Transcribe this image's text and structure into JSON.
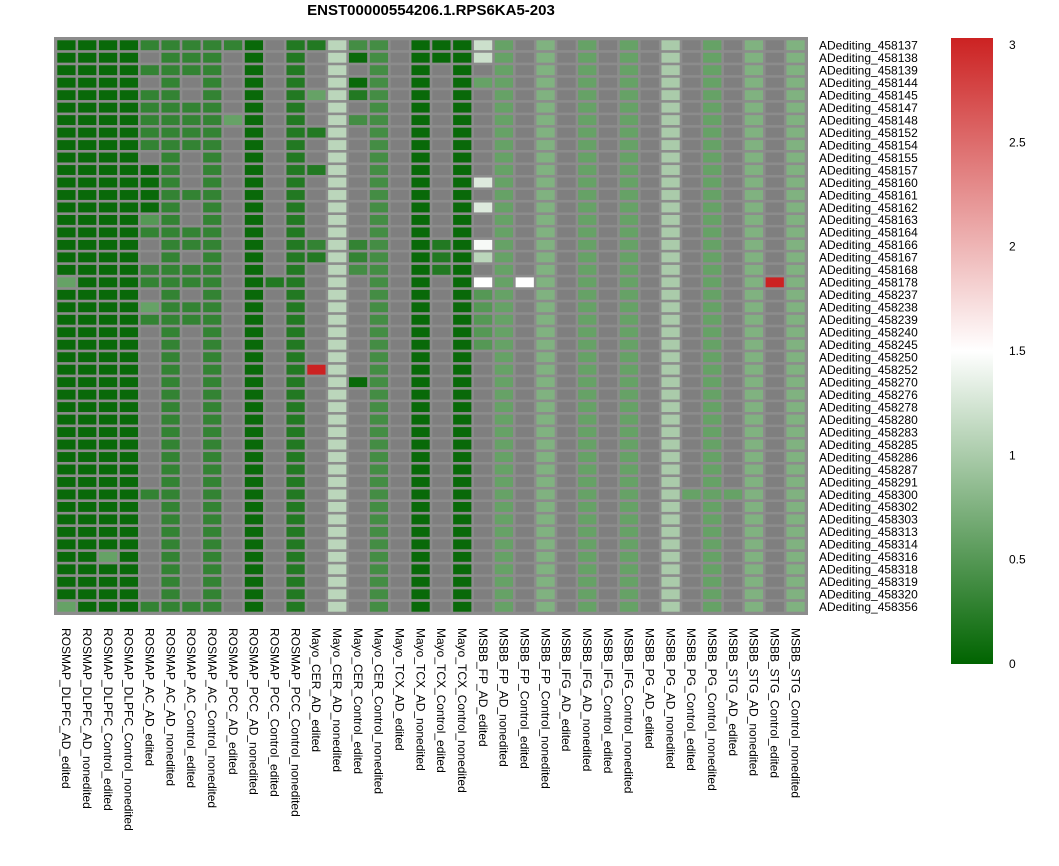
{
  "chart_data": {
    "type": "heatmap",
    "title": "ENST00000554206.1.RPS6KA5-203",
    "columns": [
      "ROSMAP_DLPFC_AD_edited",
      "ROSMAP_DLPFC_AD_nonedited",
      "ROSMAP_DLPFC_Control_edited",
      "ROSMAP_DLPFC_Control_nonedited",
      "ROSMAP_AC_AD_edited",
      "ROSMAP_AC_AD_nonedited",
      "ROSMAP_AC_Control_edited",
      "ROSMAP_AC_Control_nonedited",
      "ROSMAP_PCC_AD_edited",
      "ROSMAP_PCC_AD_nonedited",
      "ROSMAP_PCC_Control_edited",
      "ROSMAP_PCC_Control_nonedited",
      "Mayo_CER_AD_edited",
      "Mayo_CER_AD_nonedited",
      "Mayo_CER_Control_edited",
      "Mayo_CER_Control_nonedited",
      "Mayo_TCX_AD_edited",
      "Mayo_TCX_AD_nonedited",
      "Mayo_TCX_Control_edited",
      "Mayo_TCX_Control_nonedited",
      "MSBB_FP_AD_edited",
      "MSBB_FP_AD_nonedited",
      "MSBB_FP_Control_edited",
      "MSBB_FP_Control_nonedited",
      "MSBB_IFG_AD_edited",
      "MSBB_IFG_AD_nonedited",
      "MSBB_IFG_Control_edited",
      "MSBB_IFG_Control_nonedited",
      "MSBB_PG_AD_edited",
      "MSBB_PG_AD_nonedited",
      "MSBB_PG_Control_edited",
      "MSBB_PG_Control_nonedited",
      "MSBB_STG_AD_edited",
      "MSBB_STG_AD_nonedited",
      "MSBB_STG_Control_edited",
      "MSBB_STG_Control_nonedited"
    ],
    "rows": [
      "ADediting_458137",
      "ADediting_458138",
      "ADediting_458139",
      "ADediting_458144",
      "ADediting_458145",
      "ADediting_458147",
      "ADediting_458148",
      "ADediting_458152",
      "ADediting_458154",
      "ADediting_458155",
      "ADediting_458157",
      "ADediting_458160",
      "ADediting_458161",
      "ADediting_458162",
      "ADediting_458163",
      "ADediting_458164",
      "ADediting_458166",
      "ADediting_458167",
      "ADediting_458168",
      "ADediting_458178",
      "ADediting_458237",
      "ADediting_458238",
      "ADediting_458239",
      "ADediting_458240",
      "ADediting_458245",
      "ADediting_458250",
      "ADediting_458252",
      "ADediting_458270",
      "ADediting_458276",
      "ADediting_458278",
      "ADediting_458280",
      "ADediting_458283",
      "ADediting_458285",
      "ADediting_458286",
      "ADediting_458287",
      "ADediting_458291",
      "ADediting_458300",
      "ADediting_458302",
      "ADediting_458303",
      "ADediting_458313",
      "ADediting_458314",
      "ADediting_458316",
      "ADediting_458318",
      "ADediting_458319",
      "ADediting_458320",
      "ADediting_458356"
    ],
    "base_column_values": [
      0.05,
      0.05,
      0.05,
      0.05,
      null,
      0.3,
      null,
      0.3,
      null,
      0.05,
      null,
      0.2,
      null,
      1.1,
      null,
      0.4,
      null,
      0.05,
      null,
      0.05,
      null,
      0.6,
      null,
      0.75,
      null,
      0.6,
      null,
      0.6,
      null,
      1.0,
      null,
      0.6,
      null,
      0.75,
      null,
      0.75
    ],
    "overrides": [
      {
        "row": 0,
        "col": 4,
        "value": 0.3
      },
      {
        "row": 0,
        "col": 6,
        "value": 0.3
      },
      {
        "row": 0,
        "col": 8,
        "value": 0.3
      },
      {
        "row": 0,
        "col": 12,
        "value": 0.2
      },
      {
        "row": 0,
        "col": 14,
        "value": 0.4
      },
      {
        "row": 0,
        "col": 18,
        "value": 0.05
      },
      {
        "row": 0,
        "col": 20,
        "value": 1.2
      },
      {
        "row": 1,
        "col": 6,
        "value": 0.3
      },
      {
        "row": 1,
        "col": 14,
        "value": 0.05
      },
      {
        "row": 1,
        "col": 18,
        "value": 0.05
      },
      {
        "row": 1,
        "col": 20,
        "value": 1.2
      },
      {
        "row": 2,
        "col": 4,
        "value": 0.3
      },
      {
        "row": 2,
        "col": 6,
        "value": 0.3
      },
      {
        "row": 3,
        "col": 14,
        "value": 0.05
      },
      {
        "row": 3,
        "col": 20,
        "value": 0.6
      },
      {
        "row": 4,
        "col": 4,
        "value": 0.3
      },
      {
        "row": 4,
        "col": 12,
        "value": 0.6
      },
      {
        "row": 4,
        "col": 14,
        "value": 0.2
      },
      {
        "row": 5,
        "col": 4,
        "value": 0.3
      },
      {
        "row": 5,
        "col": 6,
        "value": 0.3
      },
      {
        "row": 6,
        "col": 4,
        "value": 0.3
      },
      {
        "row": 6,
        "col": 6,
        "value": 0.3
      },
      {
        "row": 6,
        "col": 8,
        "value": 0.6
      },
      {
        "row": 6,
        "col": 14,
        "value": 0.4
      },
      {
        "row": 7,
        "col": 4,
        "value": 0.3
      },
      {
        "row": 7,
        "col": 6,
        "value": 0.3
      },
      {
        "row": 7,
        "col": 12,
        "value": 0.2
      },
      {
        "row": 8,
        "col": 4,
        "value": 0.3
      },
      {
        "row": 8,
        "col": 6,
        "value": 0.3
      },
      {
        "row": 10,
        "col": 4,
        "value": 0.05
      },
      {
        "row": 10,
        "col": 12,
        "value": 0.2
      },
      {
        "row": 11,
        "col": 4,
        "value": 0.05
      },
      {
        "row": 11,
        "col": 20,
        "value": 1.3
      },
      {
        "row": 12,
        "col": 4,
        "value": 0.05
      },
      {
        "row": 12,
        "col": 6,
        "value": 0.3
      },
      {
        "row": 13,
        "col": 4,
        "value": 0.05
      },
      {
        "row": 13,
        "col": 20,
        "value": 1.3
      },
      {
        "row": 14,
        "col": 4,
        "value": 0.5
      },
      {
        "row": 15,
        "col": 4,
        "value": 0.3
      },
      {
        "row": 15,
        "col": 6,
        "value": 0.3
      },
      {
        "row": 16,
        "col": 6,
        "value": 0.3
      },
      {
        "row": 16,
        "col": 12,
        "value": 0.3
      },
      {
        "row": 16,
        "col": 14,
        "value": 0.3
      },
      {
        "row": 16,
        "col": 18,
        "value": 0.2
      },
      {
        "row": 16,
        "col": 20,
        "value": 1.45
      },
      {
        "row": 17,
        "col": 12,
        "value": 0.2
      },
      {
        "row": 17,
        "col": 14,
        "value": 0.3
      },
      {
        "row": 17,
        "col": 18,
        "value": 0.2
      },
      {
        "row": 17,
        "col": 20,
        "value": 1.1
      },
      {
        "row": 18,
        "col": 4,
        "value": 0.3
      },
      {
        "row": 18,
        "col": 6,
        "value": 0.3
      },
      {
        "row": 18,
        "col": 14,
        "value": 0.4
      },
      {
        "row": 18,
        "col": 18,
        "value": 0.2
      },
      {
        "row": 19,
        "col": 0,
        "value": 0.6
      },
      {
        "row": 19,
        "col": 4,
        "value": 0.3
      },
      {
        "row": 19,
        "col": 6,
        "value": 0.3
      },
      {
        "row": 19,
        "col": 10,
        "value": 0.2
      },
      {
        "row": 19,
        "col": 20,
        "value": 1.5
      },
      {
        "row": 19,
        "col": 22,
        "value": 1.5
      },
      {
        "row": 19,
        "col": 34,
        "value": 3.0
      },
      {
        "row": 20,
        "col": 20,
        "value": 0.5
      },
      {
        "row": 21,
        "col": 4,
        "value": 0.6
      },
      {
        "row": 21,
        "col": 6,
        "value": 0.3
      },
      {
        "row": 21,
        "col": 20,
        "value": 0.5
      },
      {
        "row": 22,
        "col": 4,
        "value": 0.3
      },
      {
        "row": 22,
        "col": 6,
        "value": 0.3
      },
      {
        "row": 22,
        "col": 20,
        "value": 0.5
      },
      {
        "row": 23,
        "col": 20,
        "value": 0.5
      },
      {
        "row": 24,
        "col": 20,
        "value": 0.5
      },
      {
        "row": 26,
        "col": 12,
        "value": 3.0
      },
      {
        "row": 27,
        "col": 14,
        "value": 0.05
      },
      {
        "row": 36,
        "col": 4,
        "value": 0.3
      },
      {
        "row": 36,
        "col": 30,
        "value": 0.6
      },
      {
        "row": 36,
        "col": 32,
        "value": 0.6
      },
      {
        "row": 41,
        "col": 2,
        "value": 0.6
      },
      {
        "row": 42,
        "col": 2,
        "value": 0.05
      },
      {
        "row": 45,
        "col": 0,
        "value": 0.6
      },
      {
        "row": 45,
        "col": 4,
        "value": 0.3
      },
      {
        "row": 45,
        "col": 6,
        "value": 0.3
      }
    ],
    "missing_value_color": "#7f7f7f",
    "color_scale": {
      "min": 0,
      "mid": 1.5,
      "max": 3,
      "low": "#006400",
      "middle": "#ffffff",
      "high": "#cc2222"
    },
    "colorbar_ticks": [
      "0",
      "0.5",
      "1",
      "1.5",
      "2",
      "2.5",
      "3"
    ]
  }
}
